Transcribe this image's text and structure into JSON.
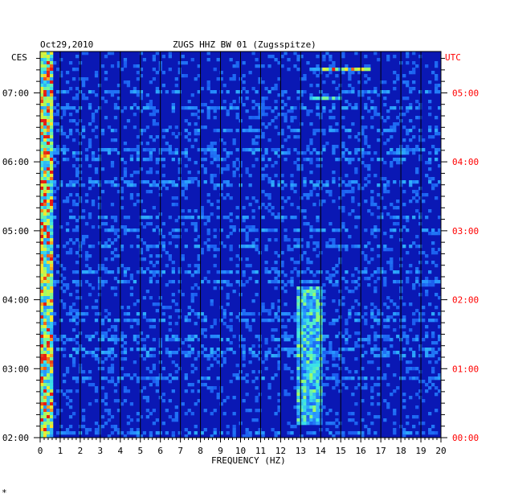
{
  "header": {
    "date": "Oct29,2010",
    "station": "ZUGS HHZ BW 01 (Zugsspitze)",
    "left_zone": "CES",
    "right_zone": "UTC"
  },
  "chart_data": {
    "type": "heatmap",
    "title": "ZUGS HHZ BW 01 (Zugsspitze)",
    "xlabel": "FREQUENCY (HZ)",
    "xlim": [
      0,
      20
    ],
    "x_ticks": [
      "0",
      "1",
      "2",
      "3",
      "4",
      "5",
      "6",
      "7",
      "8",
      "9",
      "10",
      "11",
      "12",
      "13",
      "14",
      "15",
      "16",
      "17",
      "18",
      "19",
      "20"
    ],
    "left_time_ticks": [
      "02:00",
      "03:00",
      "04:00",
      "05:00",
      "06:00",
      "07:00"
    ],
    "right_time_ticks": [
      "00:00",
      "01:00",
      "02:00",
      "03:00",
      "04:00",
      "05:00"
    ],
    "time_range_hours": [
      2.0,
      7.6
    ],
    "grid": true,
    "colors": {
      "background": "#0a18b4",
      "grid": "#000000",
      "utc_text": "#ff0000",
      "text": "#000000"
    },
    "energy_bands": [
      {
        "freq": [
          0.0,
          0.7
        ],
        "time": [
          2.0,
          7.6
        ],
        "level": "high"
      },
      {
        "freq": [
          12.8,
          14.0
        ],
        "time": [
          2.2,
          4.2
        ],
        "level": "medium"
      },
      {
        "freq": [
          13.5,
          16.5
        ],
        "time": [
          7.3,
          7.35
        ],
        "level": "high"
      },
      {
        "freq": [
          13.5,
          15.0
        ],
        "time": [
          6.9,
          6.95
        ],
        "level": "medium"
      }
    ]
  },
  "footer": {
    "mark": "*"
  }
}
